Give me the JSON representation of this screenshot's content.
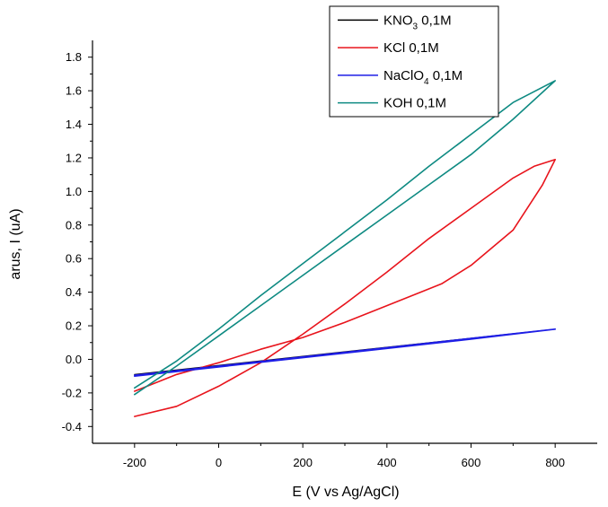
{
  "chart_data": {
    "type": "line",
    "xlabel": "E (V vs Ag/AgCl)",
    "ylabel": "arus, I (uA)",
    "xlim": [
      -300,
      900
    ],
    "ylim": [
      -0.5,
      1.9
    ],
    "xticks": [
      -200,
      0,
      200,
      400,
      600,
      800
    ],
    "yticks": [
      -0.4,
      -0.2,
      0.0,
      0.2,
      0.4,
      0.6,
      0.8,
      1.0,
      1.2,
      1.4,
      1.6,
      1.8
    ],
    "xtick_labels": [
      "-200",
      "0",
      "200",
      "400",
      "600",
      "800"
    ],
    "ytick_labels": [
      "-0.4",
      "-0.2",
      "0.0",
      "0.2",
      "0.4",
      "0.6",
      "0.8",
      "1.0",
      "1.2",
      "1.4",
      "1.6",
      "1.8"
    ],
    "legend_position": "top-right",
    "legend": [
      {
        "main": "KNO",
        "sub": "3",
        "tail": " 0,1M",
        "color": "#000000"
      },
      {
        "main": "KCl 0,1M",
        "sub": "",
        "tail": "",
        "color": "#e8141c"
      },
      {
        "main": "NaClO",
        "sub": "4",
        "tail": " 0,1M",
        "color": "#1e1ee6"
      },
      {
        "main": "KOH 0,1M",
        "sub": "",
        "tail": "",
        "color": "#0e8a82"
      }
    ],
    "series": [
      {
        "name": "KNO3 0,1M",
        "color": "#000000",
        "x": [
          -200,
          800
        ],
        "y": [
          -0.09,
          0.18
        ]
      },
      {
        "name": "KCl 0,1M",
        "color": "#e8141c",
        "x": [
          -200,
          -100,
          0,
          100,
          200,
          300,
          400,
          500,
          600,
          700,
          750,
          800,
          770,
          700,
          600,
          530,
          500,
          400,
          300,
          200,
          100,
          0,
          -100,
          -200
        ],
        "y": [
          -0.34,
          -0.28,
          -0.16,
          -0.02,
          0.15,
          0.33,
          0.52,
          0.72,
          0.9,
          1.08,
          1.15,
          1.19,
          1.04,
          0.77,
          0.56,
          0.45,
          0.42,
          0.32,
          0.22,
          0.13,
          0.06,
          -0.02,
          -0.09,
          -0.19
        ]
      },
      {
        "name": "NaClO4 0,1M",
        "color": "#1e1ee6",
        "x": [
          -200,
          0,
          200,
          400,
          600,
          800,
          600,
          400,
          200,
          0,
          -200
        ],
        "y": [
          -0.095,
          -0.04,
          0.015,
          0.07,
          0.125,
          0.18,
          0.12,
          0.065,
          0.01,
          -0.045,
          -0.1
        ]
      },
      {
        "name": "KOH 0,1M",
        "color": "#0e8a82",
        "x": [
          -200,
          -100,
          0,
          100,
          200,
          300,
          400,
          500,
          600,
          700,
          800,
          700,
          600,
          500,
          400,
          300,
          200,
          100,
          0,
          -100,
          -200
        ],
        "y": [
          -0.21,
          -0.04,
          0.14,
          0.32,
          0.5,
          0.68,
          0.86,
          1.04,
          1.22,
          1.43,
          1.66,
          1.53,
          1.34,
          1.15,
          0.95,
          0.76,
          0.57,
          0.38,
          0.18,
          -0.01,
          -0.17
        ]
      }
    ]
  }
}
